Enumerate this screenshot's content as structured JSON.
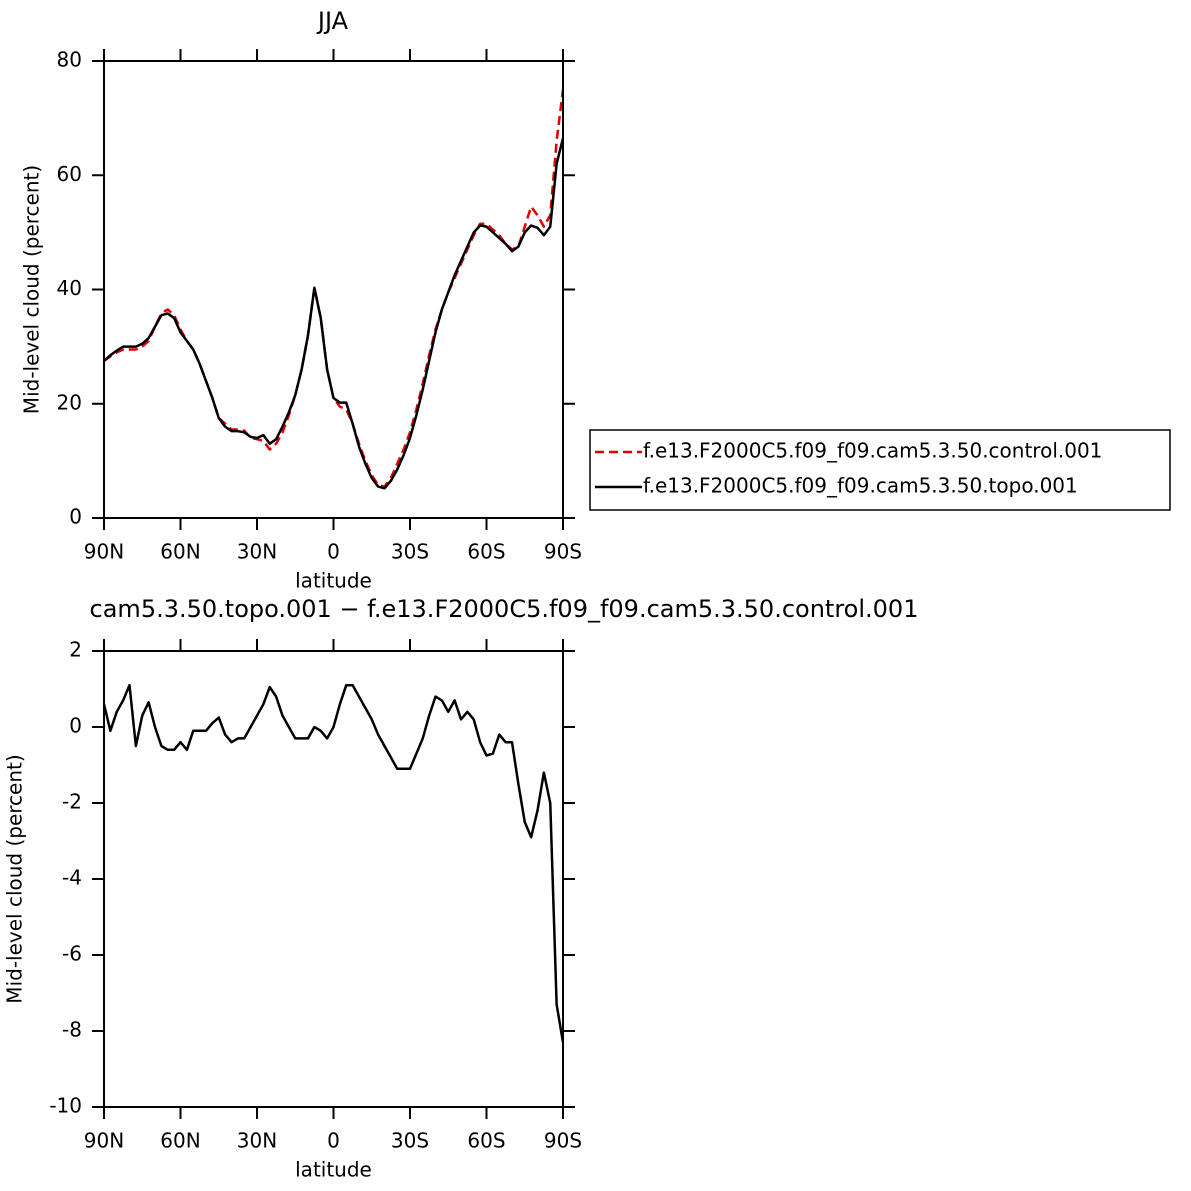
{
  "chart_data": [
    {
      "type": "line",
      "title": "JJA",
      "x_label": "latitude",
      "y_label": "Mid-level cloud (percent)",
      "x": [
        90,
        87.5,
        85,
        82.5,
        80,
        77.5,
        75,
        72.5,
        70,
        67.5,
        65,
        62.5,
        60,
        57.5,
        55,
        52.5,
        50,
        47.5,
        45,
        42.5,
        40,
        37.5,
        35,
        32.5,
        30,
        27.5,
        25,
        22.5,
        20,
        17.5,
        15,
        12.5,
        10,
        7.5,
        5,
        2.5,
        0,
        -2.5,
        -5,
        -7.5,
        -10,
        -12.5,
        -15,
        -17.5,
        -20,
        -22.5,
        -25,
        -27.5,
        -30,
        -32.5,
        -35,
        -37.5,
        -40,
        -42.5,
        -45,
        -47.5,
        -50,
        -52.5,
        -55,
        -57.5,
        -60,
        -62.5,
        -65,
        -67.5,
        -70,
        -72.5,
        -75,
        -77.5,
        -80,
        -82.5,
        -85,
        -87.5,
        -90
      ],
      "series": [
        {
          "name": "f.e13.F2000C5.f09_f09.cam5.3.50.control.001",
          "color": "#e00000",
          "line_style": "dashed",
          "values": [
            27.5,
            28.3,
            29,
            29.5,
            29.5,
            29.5,
            30,
            31,
            33.5,
            35.8,
            36.5,
            35.5,
            33,
            31,
            29.5,
            27,
            24,
            21,
            17.5,
            16.5,
            15.5,
            15.5,
            15.3,
            14,
            13.8,
            13.5,
            12,
            13,
            15,
            18,
            21.5,
            26,
            32,
            40.3,
            35,
            26,
            21,
            19.5,
            19,
            16.5,
            13,
            10,
            7.5,
            5.8,
            5.5,
            7,
            9.5,
            12,
            15,
            19,
            23.5,
            28.5,
            33,
            36.5,
            39.5,
            42,
            44.5,
            47,
            49.5,
            51.5,
            51.5,
            50.5,
            49.5,
            48,
            47,
            47.5,
            51,
            54.5,
            53,
            51,
            53,
            66,
            75
          ]
        },
        {
          "name": "f.e13.F2000C5.f09_f09.cam5.3.50.topo.001",
          "color": "#000000",
          "line_style": "solid",
          "values": [
            27.5,
            28.5,
            29.3,
            30,
            30,
            30,
            30.5,
            31.5,
            33.5,
            35.5,
            35.8,
            35,
            32.5,
            31,
            29.5,
            27,
            24,
            21,
            17.5,
            16,
            15.2,
            15.2,
            15,
            14.2,
            14,
            14.5,
            13,
            13.8,
            16,
            18.5,
            21.5,
            26,
            32,
            40.3,
            35,
            26,
            21,
            20.2,
            20.2,
            16.5,
            12.5,
            9.5,
            7,
            5.5,
            5.2,
            6.5,
            8.5,
            11,
            14,
            18,
            22.5,
            27.5,
            32.5,
            36.5,
            39.5,
            42.5,
            45,
            47.5,
            50,
            51.2,
            51,
            50,
            49,
            48,
            46.7,
            47.5,
            50,
            51.2,
            50.8,
            49.5,
            51,
            62,
            66.5
          ]
        }
      ],
      "xlim": [
        90,
        -90
      ],
      "xticks": [
        {
          "value": 90,
          "label": "90N"
        },
        {
          "value": 60,
          "label": "60N"
        },
        {
          "value": 30,
          "label": "30N"
        },
        0,
        {
          "value": -30,
          "label": "30S"
        },
        {
          "value": -60,
          "label": "60S"
        },
        {
          "value": -90,
          "label": "90S"
        }
      ],
      "ylim": [
        0,
        80
      ],
      "yticks": [
        0,
        20,
        40,
        60,
        80
      ],
      "legend": "right"
    },
    {
      "type": "line",
      "title": "cam5.3.50.topo.001 − f.e13.F2000C5.f09_f09.cam5.3.50.control.001",
      "x_label": "latitude",
      "y_label": "Mid-level cloud (percent)",
      "x": [
        90,
        87.5,
        85,
        82.5,
        80,
        77.5,
        75,
        72.5,
        70,
        67.5,
        65,
        62.5,
        60,
        57.5,
        55,
        52.5,
        50,
        47.5,
        45,
        42.5,
        40,
        37.5,
        35,
        32.5,
        30,
        27.5,
        25,
        22.5,
        20,
        17.5,
        15,
        12.5,
        10,
        7.5,
        5,
        2.5,
        0,
        -2.5,
        -5,
        -7.5,
        -10,
        -12.5,
        -15,
        -17.5,
        -20,
        -22.5,
        -25,
        -27.5,
        -30,
        -32.5,
        -35,
        -37.5,
        -40,
        -42.5,
        -45,
        -47.5,
        -50,
        -52.5,
        -55,
        -57.5,
        -60,
        -62.5,
        -65,
        -67.5,
        -70,
        -72.5,
        -75,
        -77.5,
        -80,
        -82.5,
        -85,
        -87.5,
        -90
      ],
      "series": [
        {
          "color": "#000000",
          "line_style": "solid",
          "values": [
            0.6,
            -0.1,
            0.4,
            0.7,
            1.1,
            -0.5,
            0.3,
            0.65,
            0,
            -0.5,
            -0.6,
            -0.6,
            -0.4,
            -0.6,
            -0.1,
            -0.1,
            -0.1,
            0.1,
            0.25,
            -0.2,
            -0.4,
            -0.3,
            -0.3,
            0,
            0.3,
            0.6,
            1.05,
            0.8,
            0.3,
            0,
            -0.3,
            -0.3,
            -0.3,
            0,
            -0.1,
            -0.3,
            0,
            0.6,
            1.1,
            1.1,
            0.8,
            0.5,
            0.2,
            -0.2,
            -0.5,
            -0.8,
            -1.1,
            -1.1,
            -1.1,
            -0.7,
            -0.3,
            0.3,
            0.8,
            0.7,
            0.4,
            0.7,
            0.2,
            0.4,
            0.2,
            -0.4,
            -0.75,
            -0.7,
            -0.2,
            -0.4,
            -0.4,
            -1.5,
            -2.5,
            -2.9,
            -2.2,
            -1.2,
            -2,
            -7.3,
            -8.3
          ]
        }
      ],
      "xlim": [
        90,
        -90
      ],
      "xticks": [
        {
          "value": 90,
          "label": "90N"
        },
        {
          "value": 60,
          "label": "60N"
        },
        {
          "value": 30,
          "label": "30N"
        },
        0,
        {
          "value": -30,
          "label": "30S"
        },
        {
          "value": -60,
          "label": "60S"
        },
        {
          "value": -90,
          "label": "90S"
        }
      ],
      "ylim": [
        -10,
        2
      ],
      "yticks": [
        -10,
        -8,
        -6,
        -4,
        -2,
        0,
        2
      ]
    }
  ]
}
